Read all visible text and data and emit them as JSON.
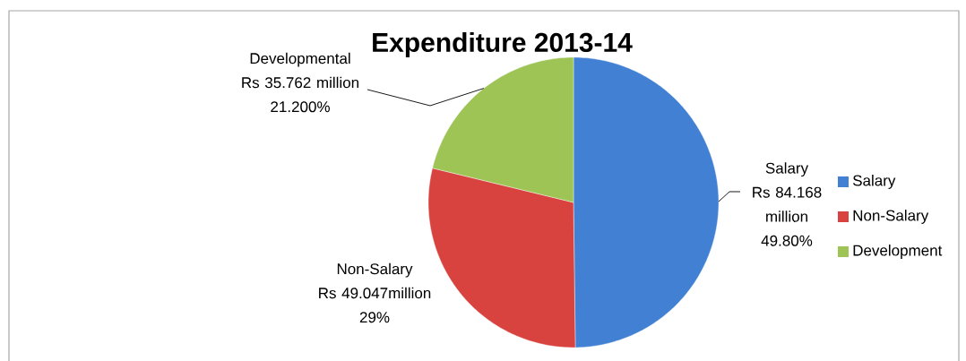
{
  "chart_data": {
    "type": "pie",
    "title": "Expenditure 2013-14",
    "categories": [
      "Salary",
      "Non-Salary",
      "Development"
    ],
    "values": [
      49.8,
      29,
      21.2
    ],
    "colors": [
      "#4180d3",
      "#d84340",
      "#9dc455"
    ],
    "value_labels": [
      "49.80%",
      "29%",
      "21.200%"
    ],
    "annotations": [
      "Salary",
      "Non-Salary",
      "Developmental",
      "Rs 84.168 million",
      "Rs 49.047million",
      "Rs 35.762 million"
    ],
    "legend": "right"
  }
}
